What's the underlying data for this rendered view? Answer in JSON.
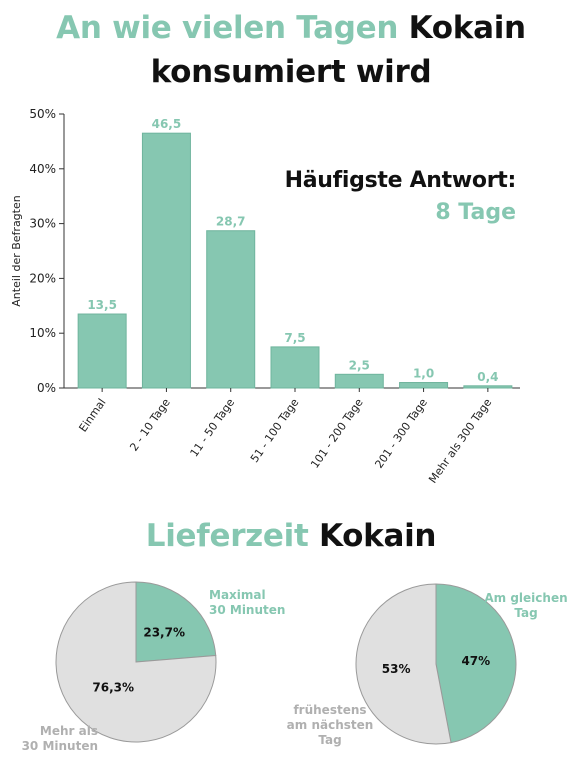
{
  "header": {
    "title_accent": "An wie vielen Tagen",
    "title_dark": "Kokain",
    "title_line2": "konsumiert wird"
  },
  "highlight": {
    "label": "Häufigste Antwort:",
    "value": "8 Tage"
  },
  "section2": {
    "title_accent": "Lieferzeit",
    "title_dark": "Kokain"
  },
  "colors": {
    "accent": "#86c7b1",
    "bar_stroke": "#6fb49d",
    "pie_gray": "#e0e0e0",
    "dark": "#111111"
  },
  "chart_data": [
    {
      "type": "bar",
      "ylabel": "Anteil der Befragten",
      "ylim": [
        0,
        50
      ],
      "yticks": [
        "0%",
        "10%",
        "20%",
        "30%",
        "40%",
        "50%"
      ],
      "categories": [
        "Einmal",
        "2 - 10 Tage",
        "11 - 50 Tage",
        "51 - 100 Tage",
        "101 - 200 Tage",
        "201 - 300 Tage",
        "Mehr als 300 Tage"
      ],
      "values": [
        13.5,
        46.5,
        28.7,
        7.5,
        2.5,
        1.0,
        0.4
      ],
      "value_labels": [
        "13,5",
        "46,5",
        "28,7",
        "7,5",
        "2,5",
        "1,0",
        "0,4"
      ]
    },
    {
      "type": "pie",
      "slices": [
        {
          "label": "Maximal 30 Minuten",
          "label_lines": [
            "Maximal",
            "30 Minuten"
          ],
          "value": 23.7,
          "text": "23,7%",
          "color": "#86c7b1"
        },
        {
          "label": "Mehr als 30 Minuten",
          "label_lines": [
            "Mehr als",
            "30 Minuten"
          ],
          "value": 76.3,
          "text": "76,3%",
          "color": "#e0e0e0"
        }
      ]
    },
    {
      "type": "pie",
      "slices": [
        {
          "label": "Am gleichen Tag",
          "label_lines": [
            "Am gleichen",
            "Tag"
          ],
          "value": 47,
          "text": "47%",
          "color": "#86c7b1"
        },
        {
          "label": "frühestens am nächsten Tag",
          "label_lines": [
            "frühestens",
            "am nächsten",
            "Tag"
          ],
          "value": 53,
          "text": "53%",
          "color": "#e0e0e0"
        }
      ]
    }
  ]
}
